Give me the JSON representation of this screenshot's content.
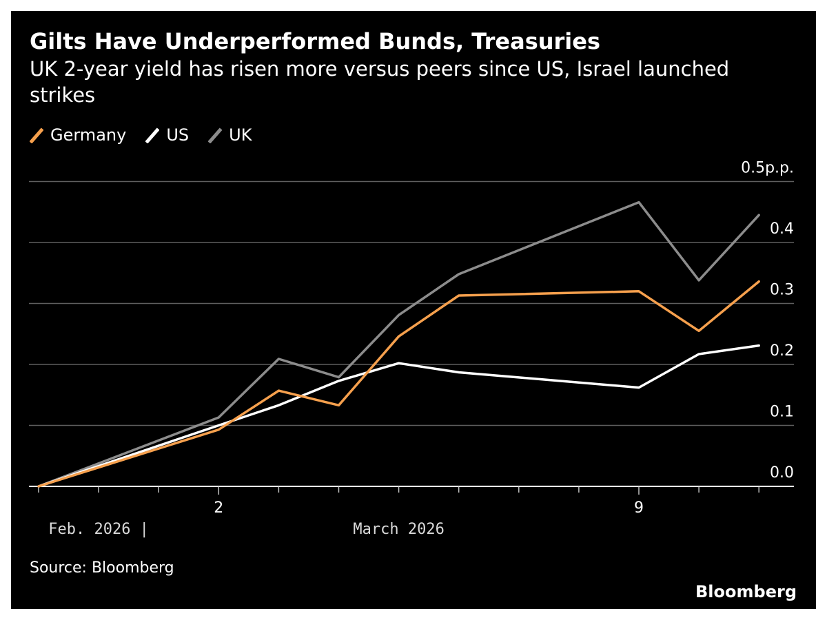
{
  "header": {
    "title": "Gilts Have Underperformed Bunds, Treasuries",
    "subtitle": "UK 2-year yield has risen more versus peers since US, Israel launched strikes"
  },
  "legend": [
    {
      "label": "Germany",
      "color": "#f6a04d"
    },
    {
      "label": "US",
      "color": "#ffffff"
    },
    {
      "label": "UK",
      "color": "#8c8c8c"
    }
  ],
  "footer": {
    "source": "Source: Bloomberg",
    "brand": "Bloomberg"
  },
  "chart_data": {
    "type": "line",
    "x": [
      "Feb 27",
      "Feb 28",
      "Mar 1",
      "Mar 2",
      "Mar 3",
      "Mar 4",
      "Mar 5",
      "Mar 6",
      "Mar 7",
      "Mar 8",
      "Mar 9",
      "Mar 10",
      "Mar 11"
    ],
    "series": [
      {
        "name": "Germany",
        "color": "#f6a04d",
        "points": [
          [
            "Feb 27",
            0.0
          ],
          [
            "Mar 2",
            0.093
          ],
          [
            "Mar 3",
            0.157
          ],
          [
            "Mar 4",
            0.133
          ],
          [
            "Mar 5",
            0.246
          ],
          [
            "Mar 6",
            0.313
          ],
          [
            "Mar 9",
            0.32
          ],
          [
            "Mar 10",
            0.255
          ],
          [
            "Mar 11",
            0.336
          ]
        ]
      },
      {
        "name": "US",
        "color": "#ffffff",
        "points": [
          [
            "Feb 27",
            0.0
          ],
          [
            "Mar 2",
            0.1
          ],
          [
            "Mar 3",
            0.133
          ],
          [
            "Mar 4",
            0.173
          ],
          [
            "Mar 5",
            0.202
          ],
          [
            "Mar 6",
            0.187
          ],
          [
            "Mar 9",
            0.162
          ],
          [
            "Mar 10",
            0.217
          ],
          [
            "Mar 11",
            0.231
          ]
        ]
      },
      {
        "name": "UK",
        "color": "#8c8c8c",
        "points": [
          [
            "Feb 27",
            0.0
          ],
          [
            "Mar 2",
            0.113
          ],
          [
            "Mar 3",
            0.209
          ],
          [
            "Mar 4",
            0.179
          ],
          [
            "Mar 5",
            0.281
          ],
          [
            "Mar 6",
            0.348
          ],
          [
            "Mar 9",
            0.466
          ],
          [
            "Mar 10",
            0.338
          ],
          [
            "Mar 11",
            0.445
          ]
        ]
      }
    ],
    "ylim": [
      0,
      0.5
    ],
    "y_ticks": [
      {
        "value": 0.0,
        "label": "0.0"
      },
      {
        "value": 0.1,
        "label": "0.1"
      },
      {
        "value": 0.2,
        "label": "0.2"
      },
      {
        "value": 0.3,
        "label": "0.3"
      },
      {
        "value": 0.4,
        "label": "0.4"
      },
      {
        "value": 0.5,
        "label": "0.5p.p."
      }
    ],
    "x_tick_labels": [
      {
        "x": "Mar 2",
        "label": "2"
      },
      {
        "x": "Mar 9",
        "label": "9"
      }
    ],
    "x_axis_labels": [
      {
        "x": "Feb 28",
        "label": "Feb. 2026 |"
      },
      {
        "x": "Mar 5",
        "label": "March 2026"
      }
    ],
    "y_axis_position": "right",
    "grid": true,
    "legend_position": "top-left"
  }
}
